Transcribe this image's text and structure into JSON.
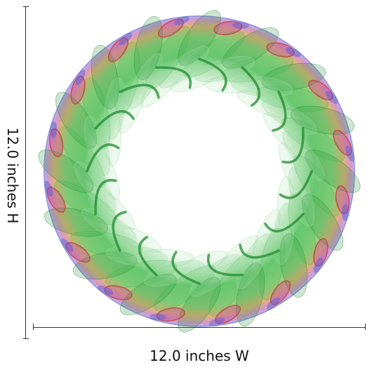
{
  "product": {
    "width_label": "12.0 inches W",
    "height_label": "12.0 inches H"
  },
  "artwork": {
    "subject": "spirograph-ring",
    "petal_count": 16,
    "colors": {
      "green_dark": "#1f8a2c",
      "green_mid": "#39b54a",
      "green_light": "#9ad99e",
      "red": "#c0392b",
      "magenta": "#b03a9a",
      "blue": "#4a55d0",
      "yellow": "#d8c640"
    }
  }
}
